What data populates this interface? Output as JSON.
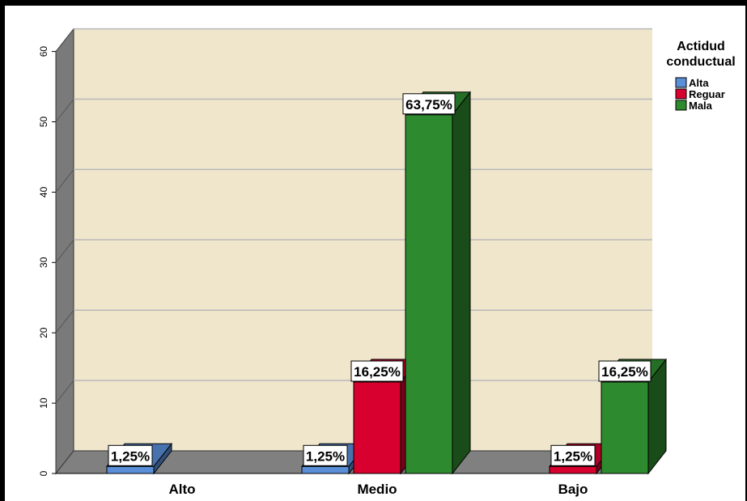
{
  "chart_data": {
    "type": "bar",
    "categories": [
      "Alto",
      "Medio",
      "Bajo"
    ],
    "ylim": [
      0,
      63
    ],
    "yticks": [
      0,
      10,
      20,
      30,
      40,
      50,
      60
    ],
    "grid": true,
    "legend_title_lines": [
      "Actidud",
      "conductual"
    ],
    "legend_position": "right",
    "series": [
      {
        "name": "Alta",
        "color": "#5a8fd8",
        "values": [
          1,
          1,
          0
        ],
        "labels": [
          "1,25%",
          "1,25%",
          ""
        ]
      },
      {
        "name": "Reguar",
        "color": "#d8002e",
        "values": [
          0,
          13,
          1
        ],
        "labels": [
          "",
          "16,25%",
          "1,25%"
        ]
      },
      {
        "name": "Mala",
        "color": "#2e8a2e",
        "values": [
          0,
          51,
          13
        ],
        "labels": [
          "",
          "63,75%",
          "16,25%"
        ]
      }
    ]
  },
  "colors": {
    "plot_background": "#efe6cc",
    "wall": "#7a7a7a",
    "floor": "#808080",
    "gridline": "#b8b8b8"
  }
}
